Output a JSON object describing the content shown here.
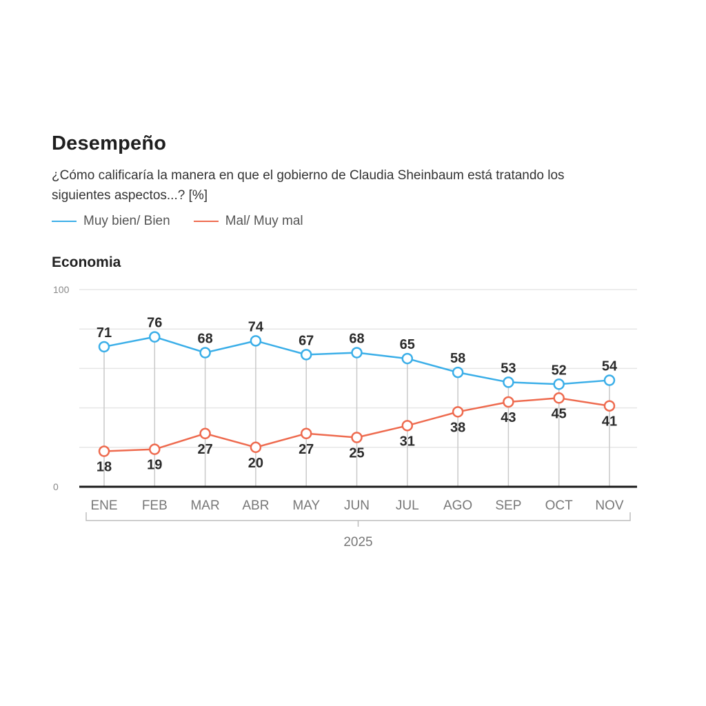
{
  "header": {
    "title": "Desempeño",
    "subtitle": "¿Cómo calificaría la manera en que el gobierno de Claudia Sheinbaum está tratando los siguientes aspectos...?  [%]"
  },
  "legend": [
    {
      "label": "Muy bien/ Bien",
      "color": "#3aaee8"
    },
    {
      "label": "Mal/ Muy mal",
      "color": "#ee6a4e"
    }
  ],
  "panel": {
    "title": "Economia"
  },
  "chart_data": {
    "type": "line",
    "title": "Economia",
    "xlabel": "2025",
    "ylabel": "",
    "ylim": [
      0,
      100
    ],
    "yticks": [
      0,
      100
    ],
    "grid": true,
    "legend_position": "top-left",
    "categories": [
      "ENE",
      "FEB",
      "MAR",
      "ABR",
      "MAY",
      "JUN",
      "JUL",
      "AGO",
      "SEP",
      "OCT",
      "NOV"
    ],
    "year_label": "2025",
    "series": [
      {
        "name": "Muy bien/ Bien",
        "color": "#3aaee8",
        "label_position": "above",
        "values": [
          71,
          76,
          68,
          74,
          67,
          68,
          65,
          58,
          53,
          52,
          54
        ]
      },
      {
        "name": "Mal/ Muy mal",
        "color": "#ee6a4e",
        "label_position": "below",
        "values": [
          18,
          19,
          27,
          20,
          27,
          25,
          31,
          38,
          43,
          45,
          41
        ]
      }
    ]
  }
}
